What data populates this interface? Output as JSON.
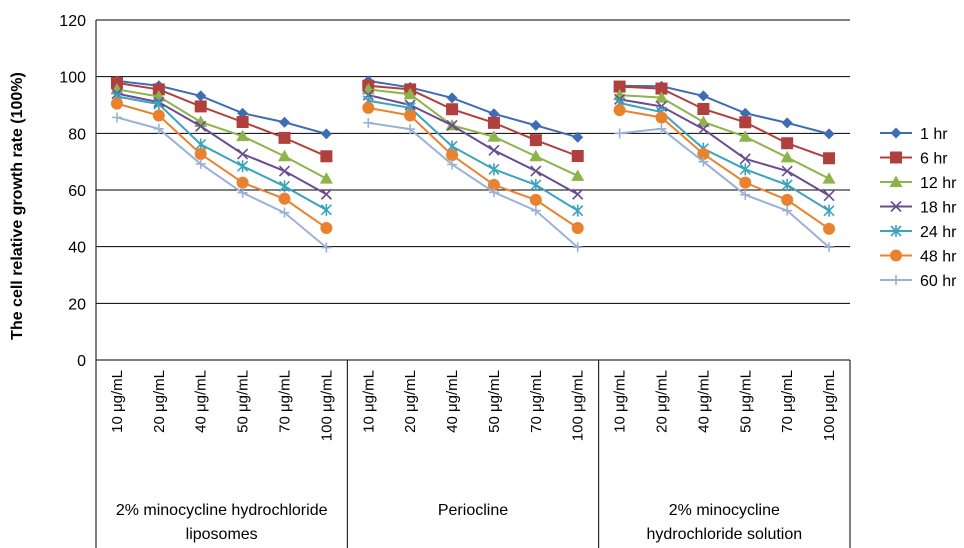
{
  "chart_data": {
    "type": "line",
    "title": "",
    "xlabel": "",
    "ylabel": "The cell relative growth rate (100%)",
    "ylim": [
      0,
      120
    ],
    "yticks": [
      0,
      20,
      40,
      60,
      80,
      100,
      120
    ],
    "grid": true,
    "legend_position": "right",
    "groups": [
      {
        "label_lines": [
          "2% minocycline hydrochloride",
          "liposomes"
        ],
        "categories": [
          "10 μg/mL",
          "20 μg/mL",
          "40 μg/mL",
          "50 μg/mL",
          "70 μg/mL",
          "100 μg/mL"
        ]
      },
      {
        "label_lines": [
          "Periocline"
        ],
        "categories": [
          "10 μg/mL",
          "20 μg/mL",
          "40 μg/mL",
          "50 μg/mL",
          "70 μg/mL",
          "100 μg/mL"
        ]
      },
      {
        "label_lines": [
          "2% minocycline",
          "hydrochloride solution"
        ],
        "categories": [
          "10 μg/mL",
          "20 μg/mL",
          "40 μg/mL",
          "50 μg/mL",
          "70 μg/mL",
          "100 μg/mL"
        ]
      }
    ],
    "series": [
      {
        "name": "1 hr",
        "color": "#3e6db5",
        "marker": "diamond",
        "values": [
          [
            98.5,
            96.8,
            93.2,
            87.1,
            83.9,
            79.8
          ],
          [
            98.5,
            96.2,
            92.5,
            86.9,
            82.8,
            78.6
          ],
          [
            96.8,
            96.6,
            93.2,
            87.1,
            83.7,
            79.8
          ]
        ]
      },
      {
        "name": "6 hr",
        "color": "#b0403e",
        "marker": "square",
        "values": [
          [
            97.8,
            95.5,
            89.5,
            84.0,
            78.4,
            71.9
          ],
          [
            96.8,
            95.5,
            88.5,
            83.7,
            77.6,
            72.0
          ],
          [
            96.5,
            95.8,
            88.6,
            83.9,
            76.5,
            71.2
          ]
        ]
      },
      {
        "name": "12 hr",
        "color": "#8eb34c",
        "marker": "triangle",
        "values": [
          [
            95.5,
            93.0,
            84.0,
            79.0,
            71.9,
            64.0
          ],
          [
            95.5,
            93.8,
            82.8,
            78.8,
            71.9,
            65.0
          ],
          [
            93.5,
            92.6,
            84.0,
            78.8,
            71.5,
            64.0
          ]
        ]
      },
      {
        "name": "18 hr",
        "color": "#6a4c93",
        "marker": "x",
        "values": [
          [
            94.0,
            91.0,
            82.5,
            72.7,
            66.7,
            58.5
          ],
          [
            93.5,
            90.0,
            82.8,
            74.0,
            66.7,
            58.5
          ],
          [
            92.0,
            89.5,
            81.5,
            71.0,
            66.7,
            58.0
          ]
        ]
      },
      {
        "name": "24 hr",
        "color": "#3aa3be",
        "marker": "asterisk",
        "values": [
          [
            93.0,
            90.3,
            76.1,
            68.4,
            61.3,
            53.0
          ],
          [
            91.5,
            89.0,
            75.4,
            67.3,
            61.8,
            52.7
          ],
          [
            90.7,
            87.5,
            74.6,
            67.3,
            61.8,
            52.7
          ]
        ]
      },
      {
        "name": "48 hr",
        "color": "#e8822e",
        "marker": "circle",
        "values": [
          [
            90.5,
            86.3,
            72.7,
            62.6,
            56.9,
            46.6
          ],
          [
            89.0,
            86.3,
            72.3,
            61.8,
            56.5,
            46.6
          ],
          [
            88.2,
            85.6,
            72.7,
            62.6,
            56.5,
            46.3
          ]
        ]
      },
      {
        "name": "60 hr",
        "color": "#9bb2d6",
        "marker": "plus",
        "values": [
          [
            85.6,
            81.6,
            69.2,
            59.0,
            52.0,
            39.7
          ],
          [
            83.7,
            81.5,
            69.0,
            59.2,
            52.7,
            39.8
          ],
          [
            80.0,
            81.6,
            70.0,
            58.3,
            52.7,
            39.8
          ]
        ]
      }
    ]
  }
}
